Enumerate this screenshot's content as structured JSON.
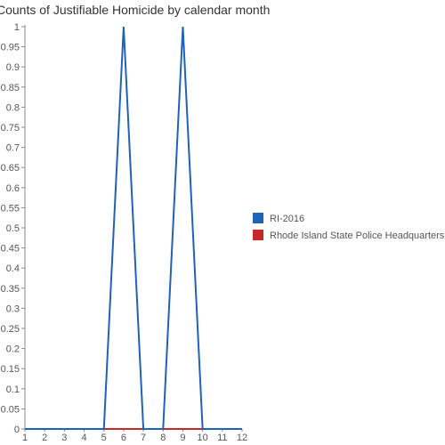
{
  "chart_data": {
    "type": "line",
    "title": "Counts of Justifiable Homicide by calendar month",
    "xlabel": "",
    "ylabel": "",
    "x": [
      1,
      2,
      3,
      4,
      5,
      6,
      7,
      8,
      9,
      10,
      11,
      12
    ],
    "ylim": [
      0,
      1
    ],
    "yticks": [
      "0",
      "0.05",
      "0.1",
      "0.15",
      "0.2",
      "0.25",
      "0.3",
      "0.35",
      "0.4",
      "0.45",
      "0.5",
      "0.55",
      "0.6",
      "0.65",
      "0.7",
      "0.75",
      "0.8",
      "0.85",
      "0.9",
      "0.95",
      "1"
    ],
    "xticks": [
      "1",
      "2",
      "3",
      "4",
      "5",
      "6",
      "7",
      "8",
      "9",
      "10",
      "11",
      "12"
    ],
    "grid": false,
    "legend_position": "right",
    "series": [
      {
        "name": "RI-2016",
        "color": "#1f63b8",
        "values": [
          0,
          0,
          0,
          0,
          0,
          1,
          0,
          0,
          1,
          0,
          0,
          0
        ]
      },
      {
        "name": "Rhode Island State Police Headquarters",
        "color": "#c62828",
        "values": [
          0,
          0,
          0,
          0,
          0,
          0,
          0,
          0,
          0,
          0,
          0,
          0
        ]
      }
    ]
  }
}
